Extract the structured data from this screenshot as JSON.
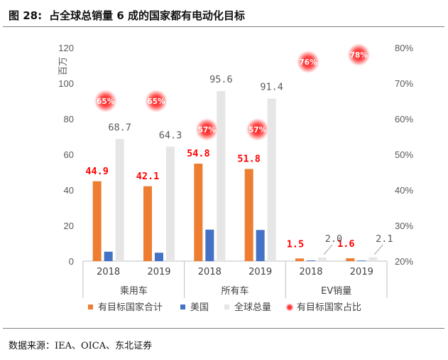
{
  "figure": {
    "number_label": "图 28:",
    "title": "占全球总销量 6 成的国家都有电动化目标",
    "source": "数据来源：IEA、OICA、东北证券"
  },
  "chart_data": {
    "type": "bar",
    "unit_label": "百万",
    "y_left_ticks": [
      "0",
      "20",
      "40",
      "60",
      "80",
      "100",
      "120"
    ],
    "y_right_ticks": [
      "20%",
      "30%",
      "40%",
      "50%",
      "60%",
      "70%",
      "80%"
    ],
    "ylim": [
      0,
      120
    ],
    "y2lim": [
      20,
      80
    ],
    "groups": [
      {
        "label": "乘用车",
        "years": [
          "2018",
          "2019"
        ]
      },
      {
        "label": "所有车",
        "years": [
          "2018",
          "2019"
        ]
      },
      {
        "label": "EV销量",
        "years": [
          "2018",
          "2019"
        ]
      }
    ],
    "categories": [
      "2018",
      "2019",
      "2018",
      "2019",
      "2018",
      "2019"
    ],
    "series": [
      {
        "name": "有目标国家合计",
        "color": "#ED7D31",
        "values": [
          44.9,
          42.1,
          54.8,
          51.8,
          1.5,
          1.6
        ],
        "labels": [
          "44.9",
          "42.1",
          "54.8",
          "51.8",
          "1.5",
          "1.6"
        ],
        "label_color": "#FF0000"
      },
      {
        "name": "美国",
        "color": "#4472C4",
        "values": [
          5.3,
          4.7,
          17.7,
          17.5,
          0.36,
          0.33
        ]
      },
      {
        "name": "全球总量",
        "color": "#E6E6E6",
        "values": [
          68.7,
          64.3,
          95.6,
          91.4,
          2.0,
          2.1
        ],
        "labels": [
          "68.7",
          "64.3",
          "95.6",
          "91.4",
          "2.0",
          "2.1"
        ],
        "label_color": "#595959"
      },
      {
        "name": "有目标国家占比",
        "color": "#FF0000",
        "type": "marker",
        "values": [
          65,
          65,
          57,
          57,
          76,
          78
        ],
        "labels": [
          "65%",
          "65%",
          "57%",
          "57%",
          "76%",
          "78%"
        ]
      }
    ]
  }
}
